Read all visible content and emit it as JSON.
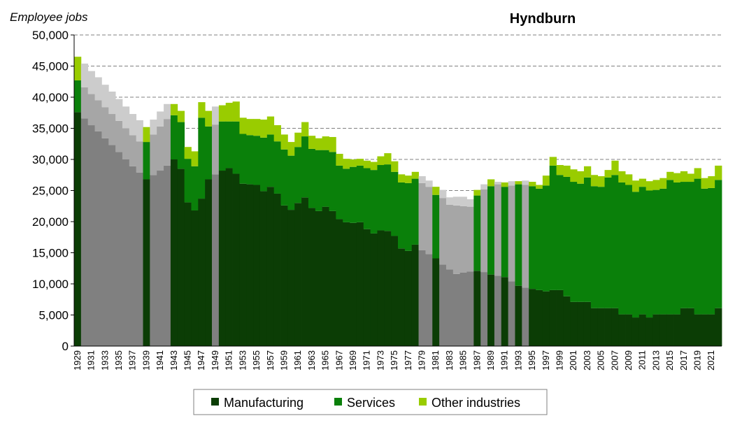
{
  "chart_data": {
    "type": "bar",
    "stacked": true,
    "title": "Hyndburn",
    "ylabel": "Employee jobs",
    "xlabel": "",
    "ylim": [
      0,
      50000
    ],
    "yticks": [
      "0",
      "5,000",
      "10,000",
      "15,000",
      "20,000",
      "25,000",
      "30,000",
      "35,000",
      "40,000",
      "45,000",
      "50,000"
    ],
    "grid": "horizontal dashed",
    "legend_position": "bottom",
    "categories": [
      1929,
      1930,
      1931,
      1932,
      1933,
      1934,
      1935,
      1936,
      1937,
      1938,
      1939,
      1940,
      1941,
      1942,
      1943,
      1944,
      1945,
      1946,
      1947,
      1948,
      1949,
      1950,
      1951,
      1952,
      1953,
      1954,
      1955,
      1956,
      1957,
      1958,
      1959,
      1960,
      1961,
      1962,
      1963,
      1964,
      1965,
      1966,
      1967,
      1968,
      1969,
      1970,
      1971,
      1972,
      1973,
      1974,
      1975,
      1976,
      1977,
      1978,
      1979,
      1980,
      1981,
      1982,
      1983,
      1984,
      1985,
      1986,
      1987,
      1988,
      1989,
      1990,
      1991,
      1992,
      1993,
      1994,
      1995,
      1996,
      1997,
      1998,
      1999,
      2000,
      2001,
      2002,
      2003,
      2004,
      2005,
      2006,
      2007,
      2008,
      2009,
      2010,
      2011,
      2012,
      2013,
      2014,
      2015,
      2016,
      2017,
      2018,
      2019,
      2020,
      2021,
      2022
    ],
    "estimated_years": [
      1930,
      1931,
      1932,
      1933,
      1934,
      1935,
      1936,
      1937,
      1938,
      1940,
      1941,
      1942,
      1949,
      1979,
      1980,
      1982,
      1983,
      1984,
      1985,
      1986,
      1988,
      1990,
      1992,
      1994
    ],
    "colors": {
      "Manufacturing": "#0b3d05",
      "Services": "#0a800a",
      "Other industries": "#99cc00",
      "estimated_shades": [
        "#808080",
        "#a6a6a6",
        "#cccccc"
      ]
    },
    "series": [
      {
        "name": "Manufacturing",
        "values": [
          37600,
          36600,
          35500,
          34500,
          33400,
          32300,
          31200,
          30000,
          28900,
          27900,
          26800,
          27500,
          28200,
          29000,
          30000,
          28500,
          23100,
          21800,
          23700,
          26800,
          27600,
          28200,
          28600,
          27700,
          26100,
          26000,
          25900,
          24900,
          25600,
          24500,
          22600,
          21900,
          23000,
          23900,
          22200,
          21700,
          22400,
          21700,
          20400,
          19900,
          19800,
          19900,
          18800,
          18100,
          18600,
          18500,
          17700,
          15700,
          15300,
          16300,
          15400,
          14800,
          14100,
          13100,
          12300,
          11600,
          11800,
          12000,
          12100,
          11900,
          11500,
          11300,
          11100,
          10400,
          9700,
          9400,
          9200,
          9000,
          8800,
          9000,
          9000,
          8000,
          7100,
          7100,
          7100,
          6100,
          6100,
          6100,
          6100,
          5100,
          5100,
          4600,
          5100,
          4600,
          5100,
          5100,
          5100,
          5100,
          6100,
          6100,
          5100,
          5100,
          5100,
          6100
        ]
      },
      {
        "name": "Services",
        "values": [
          5100,
          5000,
          5000,
          5000,
          5000,
          5000,
          5000,
          5000,
          5000,
          5000,
          6000,
          6500,
          7100,
          7500,
          7100,
          7500,
          7000,
          7100,
          13000,
          8500,
          8000,
          7900,
          7500,
          8400,
          8000,
          7900,
          7900,
          8600,
          8400,
          8400,
          9000,
          8700,
          9000,
          9800,
          9500,
          9800,
          9100,
          9500,
          8600,
          8600,
          9000,
          9100,
          9800,
          10200,
          10500,
          10700,
          10300,
          10600,
          10900,
          10600,
          10800,
          10800,
          10200,
          10700,
          10400,
          11000,
          10700,
          10400,
          12100,
          13300,
          14200,
          14700,
          14500,
          15400,
          16300,
          16500,
          16500,
          16300,
          17000,
          20000,
          18500,
          19200,
          19300,
          19000,
          20000,
          19600,
          19500,
          21000,
          21400,
          21200,
          20800,
          20200,
          20500,
          20400,
          20000,
          20200,
          21600,
          21200,
          20300,
          20300,
          21800,
          20200,
          20300,
          20600
        ]
      },
      {
        "name": "Other industries",
        "values": [
          3800,
          3800,
          3700,
          3700,
          3600,
          3600,
          3500,
          3500,
          3400,
          3400,
          2400,
          2400,
          2400,
          2400,
          1800,
          1800,
          1900,
          2400,
          2500,
          2500,
          2900,
          2600,
          3000,
          3200,
          2600,
          2600,
          2700,
          2900,
          2900,
          2600,
          2400,
          2200,
          2300,
          2300,
          2100,
          1900,
          2200,
          2400,
          1900,
          1600,
          1200,
          1100,
          1200,
          1300,
          1400,
          1800,
          1700,
          1300,
          1200,
          1100,
          1100,
          1000,
          1300,
          1300,
          1200,
          1400,
          1500,
          1200,
          900,
          800,
          1100,
          400,
          700,
          700,
          500,
          700,
          700,
          600,
          1600,
          1400,
          1600,
          1800,
          2000,
          2000,
          1800,
          1800,
          1700,
          1200,
          2300,
          1800,
          1700,
          1800,
          1300,
          1500,
          1600,
          1700,
          1300,
          1500,
          1700,
          1300,
          1700,
          1700,
          1900,
          2300
        ]
      }
    ]
  }
}
